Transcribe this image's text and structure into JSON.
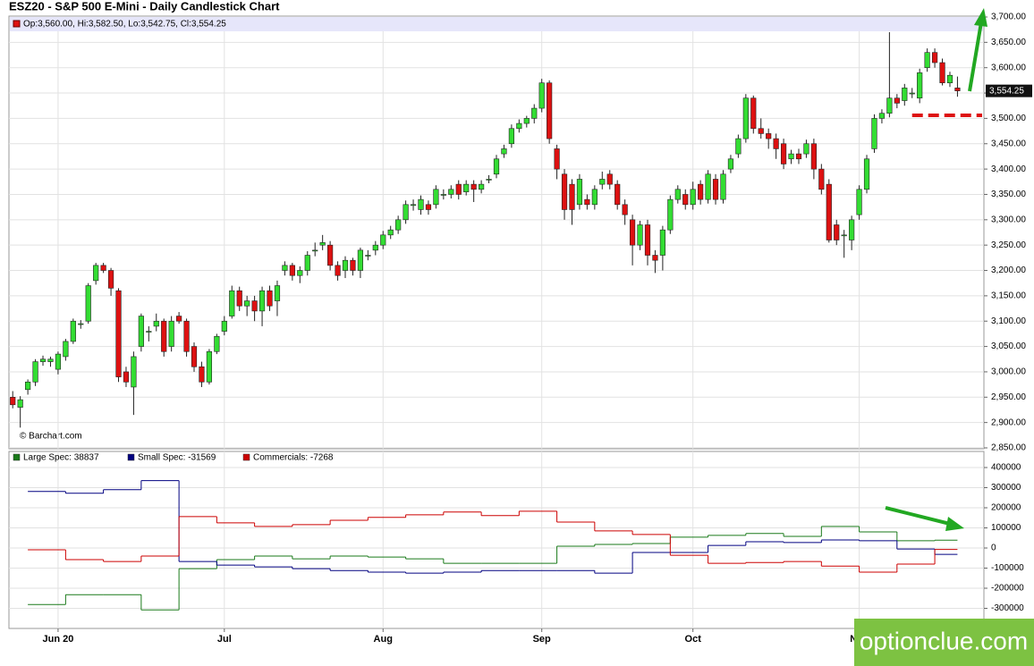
{
  "chart_data": [
    {
      "type": "candlestick",
      "title": "ESZ20 - S&P 500 E-Mini - Daily Candlestick Chart",
      "ohlc_label": "Op:3,560.00, Hi:3,582.50, Lo:3,542.75, Cl:3,554.25",
      "last_label": "3,554.25",
      "source": "© Barchart.com",
      "up_color": "#33dd33",
      "down_color": "#dd1111",
      "support_level": 3506,
      "support_color": "#dd1111",
      "xlim": [
        -0.5,
        128.5
      ],
      "xticks": [
        {
          "value": 6,
          "label": "Jun 20"
        },
        {
          "value": 28,
          "label": "Jul"
        },
        {
          "value": 49,
          "label": "Aug"
        },
        {
          "value": 70,
          "label": "Sep"
        },
        {
          "value": 90,
          "label": "Oct"
        },
        {
          "value": 112,
          "label": "Nov"
        }
      ],
      "ylim": [
        2850,
        3700
      ],
      "yticks": [
        {
          "value": 2850,
          "label": "2,850.00"
        },
        {
          "value": 2900,
          "label": "2,900.00"
        },
        {
          "value": 2950,
          "label": "2,950.00"
        },
        {
          "value": 3000,
          "label": "3,000.00"
        },
        {
          "value": 3050,
          "label": "3,050.00"
        },
        {
          "value": 3100,
          "label": "3,100.00"
        },
        {
          "value": 3150,
          "label": "3,150.00"
        },
        {
          "value": 3200,
          "label": "3,200.00"
        },
        {
          "value": 3250,
          "label": "3,250.00"
        },
        {
          "value": 3300,
          "label": "3,300.00"
        },
        {
          "value": 3350,
          "label": "3,350.00"
        },
        {
          "value": 3400,
          "label": "3,400.00"
        },
        {
          "value": 3450,
          "label": "3,450.00"
        },
        {
          "value": 3500,
          "label": "3,500.00"
        },
        {
          "value": 3550,
          "label": "3,550.00"
        },
        {
          "value": 3600,
          "label": "3,600.00"
        },
        {
          "value": 3650,
          "label": "3,650.00"
        },
        {
          "value": 3700,
          "label": "3,700.00"
        }
      ],
      "grid": true,
      "values": [
        [
          2950,
          2962,
          2928,
          2935
        ],
        [
          2930,
          2952,
          2890,
          2945
        ],
        [
          2965,
          2985,
          2955,
          2980
        ],
        [
          2980,
          3025,
          2972,
          3020
        ],
        [
          3020,
          3032,
          3012,
          3025
        ],
        [
          3020,
          3030,
          3010,
          3025
        ],
        [
          3005,
          3040,
          2995,
          3035
        ],
        [
          3030,
          3065,
          3022,
          3060
        ],
        [
          3060,
          3105,
          3055,
          3100
        ],
        [
          3095,
          3102,
          3085,
          3095
        ],
        [
          3100,
          3175,
          3095,
          3170
        ],
        [
          3180,
          3215,
          3172,
          3210
        ],
        [
          3210,
          3215,
          3195,
          3200
        ],
        [
          3200,
          3205,
          3150,
          3165
        ],
        [
          3160,
          3165,
          2980,
          2990
        ],
        [
          3000,
          3010,
          2970,
          2980
        ],
        [
          2970,
          3040,
          2915,
          3030
        ],
        [
          3050,
          3115,
          3040,
          3110
        ],
        [
          3080,
          3090,
          3060,
          3080
        ],
        [
          3090,
          3115,
          3080,
          3100
        ],
        [
          3100,
          3105,
          3030,
          3040
        ],
        [
          3050,
          3110,
          3040,
          3100
        ],
        [
          3110,
          3118,
          3095,
          3100
        ],
        [
          3100,
          3105,
          3030,
          3040
        ],
        [
          3050,
          3058,
          3000,
          3010
        ],
        [
          3010,
          3020,
          2970,
          2980
        ],
        [
          2980,
          3045,
          2975,
          3040
        ],
        [
          3040,
          3075,
          3035,
          3070
        ],
        [
          3080,
          3110,
          3072,
          3100
        ],
        [
          3110,
          3170,
          3105,
          3160
        ],
        [
          3160,
          3168,
          3120,
          3130
        ],
        [
          3130,
          3150,
          3110,
          3140
        ],
        [
          3140,
          3150,
          3100,
          3120
        ],
        [
          3120,
          3168,
          3090,
          3160
        ],
        [
          3160,
          3170,
          3120,
          3130
        ],
        [
          3140,
          3180,
          3110,
          3170
        ],
        [
          3200,
          3218,
          3190,
          3210
        ],
        [
          3210,
          3215,
          3180,
          3190
        ],
        [
          3190,
          3208,
          3175,
          3200
        ],
        [
          3200,
          3238,
          3190,
          3230
        ],
        [
          3240,
          3255,
          3228,
          3240
        ],
        [
          3250,
          3270,
          3240,
          3255
        ],
        [
          3250,
          3258,
          3200,
          3210
        ],
        [
          3210,
          3218,
          3180,
          3190
        ],
        [
          3200,
          3228,
          3185,
          3220
        ],
        [
          3220,
          3225,
          3190,
          3200
        ],
        [
          3200,
          3245,
          3185,
          3240
        ],
        [
          3230,
          3240,
          3220,
          3230
        ],
        [
          3240,
          3258,
          3230,
          3250
        ],
        [
          3250,
          3278,
          3242,
          3270
        ],
        [
          3270,
          3288,
          3262,
          3280
        ],
        [
          3280,
          3308,
          3272,
          3300
        ],
        [
          3300,
          3338,
          3292,
          3330
        ],
        [
          3330,
          3340,
          3318,
          3330
        ],
        [
          3320,
          3348,
          3310,
          3340
        ],
        [
          3330,
          3338,
          3310,
          3320
        ],
        [
          3330,
          3368,
          3322,
          3360
        ],
        [
          3350,
          3360,
          3340,
          3350
        ],
        [
          3350,
          3368,
          3342,
          3360
        ],
        [
          3370,
          3378,
          3340,
          3350
        ],
        [
          3355,
          3378,
          3348,
          3370
        ],
        [
          3370,
          3378,
          3335,
          3360
        ],
        [
          3360,
          3378,
          3352,
          3370
        ],
        [
          3380,
          3388,
          3372,
          3380
        ],
        [
          3390,
          3428,
          3382,
          3420
        ],
        [
          3430,
          3448,
          3422,
          3440
        ],
        [
          3450,
          3488,
          3442,
          3480
        ],
        [
          3480,
          3498,
          3472,
          3490
        ],
        [
          3490,
          3505,
          3482,
          3500
        ],
        [
          3500,
          3528,
          3490,
          3520
        ],
        [
          3520,
          3578,
          3512,
          3570
        ],
        [
          3570,
          3575,
          3450,
          3460
        ],
        [
          3440,
          3448,
          3380,
          3400
        ],
        [
          3390,
          3400,
          3300,
          3320
        ],
        [
          3370,
          3380,
          3290,
          3320
        ],
        [
          3330,
          3390,
          3320,
          3380
        ],
        [
          3340,
          3350,
          3320,
          3330
        ],
        [
          3330,
          3368,
          3320,
          3360
        ],
        [
          3370,
          3395,
          3360,
          3380
        ],
        [
          3390,
          3398,
          3360,
          3370
        ],
        [
          3370,
          3378,
          3320,
          3330
        ],
        [
          3330,
          3340,
          3290,
          3310
        ],
        [
          3300,
          3310,
          3210,
          3250
        ],
        [
          3250,
          3298,
          3240,
          3290
        ],
        [
          3290,
          3300,
          3210,
          3230
        ],
        [
          3230,
          3240,
          3195,
          3220
        ],
        [
          3230,
          3288,
          3200,
          3280
        ],
        [
          3280,
          3348,
          3272,
          3340
        ],
        [
          3340,
          3368,
          3332,
          3360
        ],
        [
          3350,
          3360,
          3320,
          3330
        ],
        [
          3330,
          3375,
          3320,
          3360
        ],
        [
          3370,
          3378,
          3330,
          3340
        ],
        [
          3340,
          3398,
          3332,
          3390
        ],
        [
          3380,
          3390,
          3330,
          3340
        ],
        [
          3340,
          3398,
          3332,
          3390
        ],
        [
          3400,
          3428,
          3392,
          3420
        ],
        [
          3430,
          3468,
          3422,
          3460
        ],
        [
          3460,
          3548,
          3452,
          3540
        ],
        [
          3540,
          3545,
          3470,
          3480
        ],
        [
          3480,
          3500,
          3460,
          3470
        ],
        [
          3470,
          3480,
          3440,
          3460
        ],
        [
          3460,
          3470,
          3420,
          3440
        ],
        [
          3450,
          3460,
          3400,
          3410
        ],
        [
          3420,
          3438,
          3410,
          3430
        ],
        [
          3430,
          3440,
          3410,
          3420
        ],
        [
          3430,
          3458,
          3422,
          3450
        ],
        [
          3450,
          3460,
          3380,
          3400
        ],
        [
          3400,
          3410,
          3350,
          3360
        ],
        [
          3370,
          3380,
          3255,
          3260
        ],
        [
          3290,
          3300,
          3250,
          3260
        ],
        [
          3270,
          3280,
          3225,
          3270
        ],
        [
          3260,
          3308,
          3240,
          3300
        ],
        [
          3310,
          3368,
          3300,
          3360
        ],
        [
          3360,
          3428,
          3352,
          3420
        ],
        [
          3440,
          3508,
          3432,
          3500
        ],
        [
          3500,
          3518,
          3490,
          3510
        ],
        [
          3510,
          3670,
          3502,
          3540
        ],
        [
          3540,
          3548,
          3520,
          3530
        ],
        [
          3535,
          3568,
          3525,
          3560
        ],
        [
          3550,
          3560,
          3540,
          3550
        ],
        [
          3540,
          3598,
          3530,
          3590
        ],
        [
          3600,
          3638,
          3592,
          3630
        ],
        [
          3630,
          3638,
          3600,
          3610
        ],
        [
          3610,
          3618,
          3565,
          3570
        ],
        [
          3570,
          3592,
          3562,
          3585
        ],
        [
          3560,
          3582.5,
          3542.75,
          3554.25
        ]
      ]
    },
    {
      "type": "step",
      "ylim": [
        -400000,
        480000
      ],
      "yticks": [
        -300000,
        -200000,
        -100000,
        0,
        100000,
        200000,
        300000,
        400000
      ],
      "grid": true,
      "series": [
        {
          "name": "Large Spec: 38837",
          "color": "#1a7a1a",
          "values": [
            -281000,
            -232000,
            -232000,
            -308000,
            -103000,
            -58000,
            -40000,
            -54000,
            -40000,
            -45000,
            -54000,
            -76000,
            -76000,
            -76000,
            9000,
            18000,
            22000,
            54000,
            63000,
            72000,
            58000,
            107000,
            80000,
            36000,
            38837
          ]
        },
        {
          "name": "Small Spec: -31569",
          "color": "#000080",
          "values": [
            281000,
            272000,
            290000,
            335000,
            -67000,
            -85000,
            -94000,
            -103000,
            -112000,
            -120000,
            -125000,
            -120000,
            -112000,
            -112000,
            -112000,
            -125000,
            -22000,
            -22000,
            13000,
            31000,
            27000,
            40000,
            36000,
            -5000,
            -31569
          ]
        },
        {
          "name": "Commercials: -7268",
          "color": "#cc0000",
          "values": [
            -9000,
            -58000,
            -67000,
            -40000,
            156000,
            125000,
            107000,
            116000,
            138000,
            152000,
            165000,
            179000,
            161000,
            183000,
            129000,
            85000,
            67000,
            -36000,
            -76000,
            -72000,
            -67000,
            -90000,
            -120000,
            -80000,
            -7268
          ]
        }
      ]
    }
  ],
  "watermark": "optionclue.com"
}
